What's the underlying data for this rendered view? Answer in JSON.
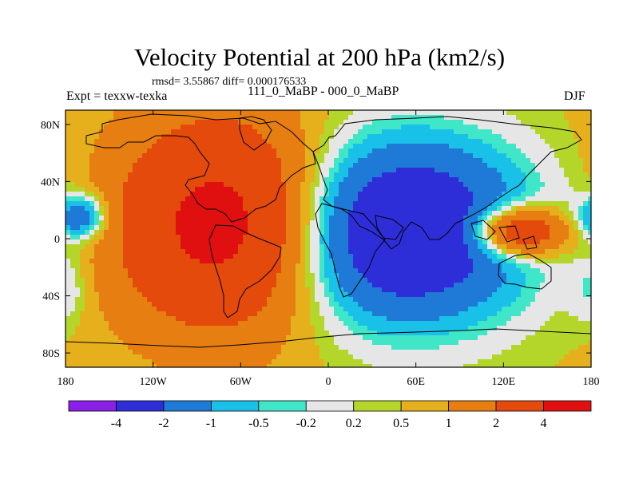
{
  "chart_data": {
    "type": "heatmap",
    "title": "Velocity Potential at 200 hPa (km2/s)",
    "stats_line": "rmsd= 3.55867 diff= 0.000176533",
    "left_label": "Expt = texxw-texka",
    "center_label": "111_0_MaBP - 000_0_MaBP",
    "right_label": "DJF",
    "x_ticks": [
      "180",
      "120W",
      "60W",
      "0",
      "60E",
      "120E",
      "180"
    ],
    "x_tick_values": [
      -180,
      -120,
      -60,
      0,
      60,
      120,
      180
    ],
    "y_ticks": [
      "80N",
      "40N",
      "0",
      "40S",
      "80S"
    ],
    "y_tick_values": [
      80,
      40,
      0,
      -40,
      -80
    ],
    "xlim": [
      -180,
      180
    ],
    "ylim": [
      -90,
      90
    ],
    "colorbar": {
      "colors": [
        "#8a1fe6",
        "#2e2ed9",
        "#1e7ad6",
        "#19c0e8",
        "#3fe6c8",
        "#e6e6e6",
        "#b4d62b",
        "#e6b01c",
        "#e67e12",
        "#e34a0c",
        "#e01010"
      ],
      "labels": [
        "-4",
        "-2",
        "-1",
        "-0.5",
        "-0.2",
        "0.2",
        "0.5",
        "1",
        "2",
        "4"
      ],
      "levels": [
        -4,
        -2,
        -1,
        -0.5,
        -0.2,
        0.2,
        0.5,
        1,
        2,
        4
      ]
    },
    "centers": [
      {
        "lon": -70,
        "lat": 10,
        "value": 4.5,
        "sx": 50,
        "sy": 50
      },
      {
        "lon": 50,
        "lat": 5,
        "value": -4.5,
        "sx": 60,
        "sy": 45
      },
      {
        "lon": 130,
        "lat": 5,
        "value": 4,
        "sx": 22,
        "sy": 12
      },
      {
        "lon": -170,
        "lat": 15,
        "value": -2.5,
        "sx": 13,
        "sy": 11
      },
      {
        "lon": -180,
        "lat": -35,
        "value": -0.8,
        "sx": 10,
        "sy": 18
      }
    ],
    "background_value": 0.6
  }
}
